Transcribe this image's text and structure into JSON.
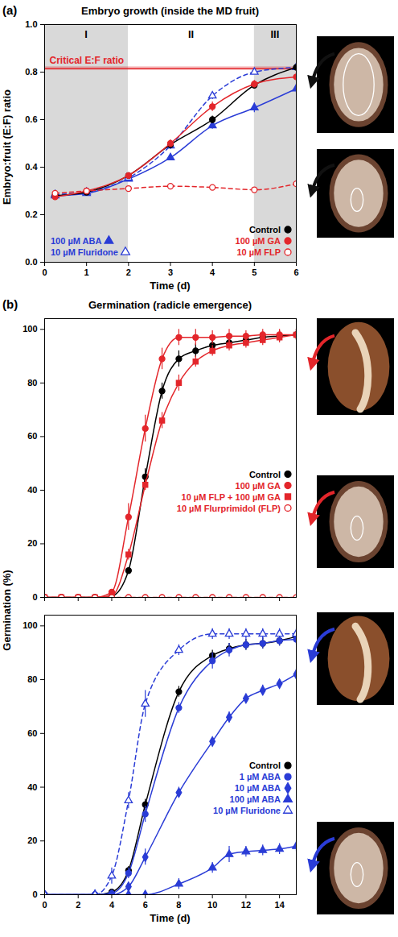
{
  "chart_data": [
    {
      "type": "line",
      "panel": "(a)",
      "title": "Embryo growth (inside the MD fruit)",
      "xlabel": "Time (d)",
      "ylabel": "Embryo:fruit (E:F) ratio",
      "xlim": [
        0,
        6
      ],
      "xticks": [
        0,
        1,
        2,
        3,
        4,
        5,
        6
      ],
      "ylim": [
        0,
        1
      ],
      "yticks": [
        {
          "value": 0,
          "label": "0.0"
        },
        {
          "value": 0.2,
          "label": "0.2"
        },
        {
          "value": 0.4,
          "label": "0.4"
        },
        {
          "value": 0.6,
          "label": "0.6"
        },
        {
          "value": 0.8,
          "label": "0.8"
        },
        {
          "value": 1,
          "label": "1.0"
        }
      ],
      "legend": "bottom",
      "regions": [
        {
          "label": "I",
          "x0": 0,
          "x1": 2,
          "color": "#d9d9d9"
        },
        {
          "label": "II",
          "x0": 2,
          "x1": 5,
          "color": "#ffffff"
        },
        {
          "label": "III",
          "x0": 5,
          "x1": 6,
          "color": "#d9d9d9"
        }
      ],
      "reference_lines": [
        {
          "label": "Critical E:F ratio",
          "y": 0.815,
          "error": 0.008,
          "color": "#e3262b"
        }
      ],
      "x": [
        0.25,
        1,
        2,
        3,
        4,
        5,
        6
      ],
      "series": [
        {
          "name": "100 µM ABA",
          "color": "#2a3cd6",
          "marker": "triangle",
          "line_style": "solid",
          "values": [
            0.28,
            0.29,
            0.35,
            0.44,
            0.575,
            0.65,
            0.73
          ],
          "errors": [
            0.01,
            0.01,
            0.01,
            0.012,
            0.015,
            0.02,
            0.02
          ]
        },
        {
          "name": "10 µM Fluridone",
          "color": "#2a3cd6",
          "marker": "triangle-open",
          "line_style": "dashed",
          "values": [
            0.285,
            0.295,
            0.355,
            0.49,
            0.7,
            0.8,
            0.82
          ],
          "errors": [
            0.01,
            0.01,
            0.01,
            0.015,
            0.015,
            0.01,
            0.01
          ]
        },
        {
          "name": "Control",
          "color": "#000000",
          "marker": "circle",
          "line_style": "solid",
          "values": [
            0.28,
            0.295,
            0.365,
            0.495,
            0.6,
            0.745,
            0.82
          ],
          "errors": [
            0.01,
            0.01,
            0.01,
            0.015,
            0.015,
            0.012,
            0.012
          ]
        },
        {
          "name": "100 µM GA",
          "color": "#e3262b",
          "marker": "circle",
          "line_style": "solid",
          "values": [
            0.275,
            0.3,
            0.365,
            0.5,
            0.655,
            0.75,
            0.78
          ],
          "errors": [
            0.01,
            0.01,
            0.01,
            0.015,
            0.02,
            0.015,
            0.02
          ]
        },
        {
          "name": "10 µM FLP",
          "color": "#e3262b",
          "marker": "circle-open",
          "line_style": "dashed",
          "values": [
            0.29,
            0.3,
            0.31,
            0.32,
            0.315,
            0.305,
            0.33
          ],
          "errors": [
            0.01,
            0.01,
            0.01,
            0.01,
            0.008,
            0.008,
            0.015
          ]
        }
      ]
    },
    {
      "type": "line",
      "panel": "(b)",
      "title": "Germination (radicle emergence)",
      "xlim": [
        0,
        15
      ],
      "xticks": [
        0,
        2,
        4,
        6,
        8,
        10,
        12,
        14
      ],
      "ylim": [
        0,
        104
      ],
      "yticks": [
        0,
        20,
        40,
        60,
        80,
        100
      ],
      "tick_labels": "y",
      "legend": "center right",
      "x": [
        0,
        1,
        2,
        3,
        4,
        5,
        6,
        7,
        8,
        9,
        10,
        11,
        12,
        13,
        14,
        15
      ],
      "series": [
        {
          "name": "Control",
          "color": "#000000",
          "marker": "circle",
          "line_style": "solid",
          "values": [
            0,
            0,
            0,
            0,
            0.5,
            10,
            45,
            77,
            89,
            92,
            94,
            95,
            96,
            97,
            97.5,
            98
          ],
          "errors": [
            0,
            0,
            0,
            0,
            0.5,
            1,
            3,
            3,
            3,
            2.5,
            2,
            2,
            2,
            2,
            2,
            2
          ]
        },
        {
          "name": "100 µM GA",
          "color": "#e3262b",
          "marker": "circle",
          "line_style": "solid",
          "values": [
            0,
            0,
            0,
            0,
            2,
            30,
            63,
            89,
            97,
            97,
            97,
            97.5,
            97.5,
            98,
            98,
            98
          ],
          "errors": [
            0,
            0,
            0,
            0,
            1,
            5,
            5,
            4,
            3,
            3,
            2.5,
            2.5,
            2,
            2,
            2,
            2
          ]
        },
        {
          "name": "10 µM FLP + 100 µM GA",
          "color": "#e3262b",
          "marker": "square",
          "line_style": "solid",
          "values": [
            0,
            0,
            0,
            0,
            0.5,
            16,
            42,
            66,
            80,
            88,
            92,
            94,
            95,
            96,
            97,
            98
          ],
          "errors": [
            0,
            0,
            0,
            0,
            0.5,
            2,
            2,
            3,
            3,
            2,
            2,
            2,
            2,
            2,
            2,
            2
          ]
        },
        {
          "name": "10 µM Flurprimidol (FLP)",
          "color": "#e3262b",
          "marker": "circle-open",
          "line_style": "dashed",
          "values": [
            0,
            0,
            0,
            0,
            0,
            0,
            0,
            0,
            0,
            0,
            0,
            0,
            0,
            0,
            0,
            0
          ],
          "errors": [
            0,
            0,
            0,
            0,
            0,
            0,
            0,
            0,
            0,
            0,
            0,
            0,
            0,
            0,
            0,
            0
          ]
        }
      ]
    },
    {
      "type": "line",
      "xlabel": "Time (d)",
      "ylabel": "Germination (%)",
      "xlim": [
        0,
        15
      ],
      "xticks": [
        0,
        2,
        4,
        6,
        8,
        10,
        12,
        14
      ],
      "ylim": [
        0,
        104
      ],
      "yticks": [
        0,
        20,
        40,
        60,
        80,
        100
      ],
      "legend": "center right",
      "x": [
        0,
        3,
        4,
        5,
        6,
        8,
        10,
        11,
        12,
        13,
        14,
        15
      ],
      "series": [
        {
          "name": "Control",
          "color": "#000000",
          "marker": "circle",
          "line_style": "solid",
          "values": [
            0,
            0,
            1,
            9,
            33.5,
            75.5,
            89,
            91.5,
            93,
            93.5,
            94.5,
            96
          ],
          "errors": [
            0,
            0,
            0.5,
            1.5,
            2,
            2,
            2,
            2,
            2,
            2,
            2,
            2
          ]
        },
        {
          "name": "1 µM ABA",
          "color": "#2a3cd6",
          "marker": "circle",
          "line_style": "solid",
          "values": [
            0,
            0,
            0.5,
            8,
            30,
            69.5,
            87,
            91,
            93,
            93.5,
            94.5,
            95
          ],
          "errors": [
            0,
            0,
            0.5,
            2,
            3,
            2,
            3,
            2.5,
            2,
            2,
            2,
            2
          ]
        },
        {
          "name": "10 µM ABA",
          "color": "#2a3cd6",
          "marker": "diamond",
          "line_style": "solid",
          "values": [
            0,
            0,
            0,
            3,
            14,
            38,
            57,
            66,
            73,
            76,
            78.5,
            82
          ],
          "errors": [
            0,
            0,
            0,
            1,
            3,
            2,
            1,
            2,
            1,
            2,
            1.5,
            2
          ]
        },
        {
          "name": "100 µM ABA",
          "color": "#2a3cd6",
          "marker": "triangle",
          "line_style": "solid",
          "values": [
            0,
            0,
            0,
            0,
            0,
            4,
            10,
            15,
            16,
            16.5,
            17,
            18
          ],
          "errors": [
            0,
            0,
            0,
            0,
            0,
            2,
            2,
            3,
            2,
            2,
            2,
            2
          ]
        },
        {
          "name": "10 µM Fluridone",
          "color": "#2a3cd6",
          "marker": "triangle-open",
          "line_style": "dashed",
          "values": [
            0,
            0,
            7,
            35,
            71,
            91,
            97,
            97,
            97,
            97,
            97,
            97
          ],
          "errors": [
            0,
            0,
            3,
            3,
            5,
            2,
            2,
            2,
            2,
            2,
            2,
            2
          ]
        }
      ]
    }
  ]
}
